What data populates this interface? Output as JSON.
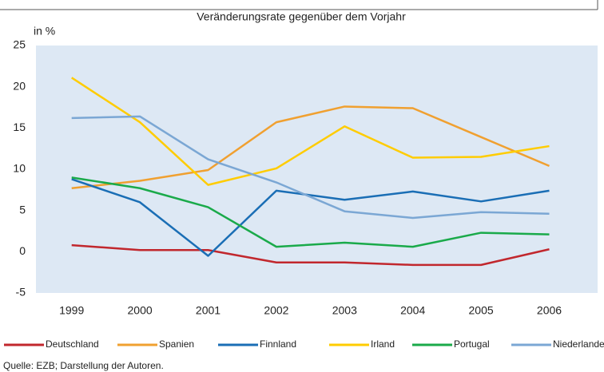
{
  "chart_data": {
    "type": "line",
    "title": "Veränderungsrate gegenüber dem Vorjahr",
    "y_label": "in %",
    "source": "Quelle: EZB; Darstellung der Autoren.",
    "categories": [
      "1999",
      "2000",
      "2001",
      "2002",
      "2003",
      "2004",
      "2005",
      "2006"
    ],
    "series": [
      {
        "name": "Deutschland",
        "color": "#c1272d",
        "values": [
          0.8,
          0.2,
          0.2,
          -1.3,
          -1.3,
          -1.6,
          -1.6,
          0.3
        ]
      },
      {
        "name": "Spanien",
        "color": "#f0a030",
        "values": [
          7.7,
          8.6,
          9.9,
          15.7,
          17.6,
          17.4,
          13.9,
          10.4
        ]
      },
      {
        "name": "Finnland",
        "color": "#1a6eb5",
        "values": [
          8.8,
          6.0,
          -0.5,
          7.4,
          6.3,
          7.3,
          6.1,
          7.4
        ]
      },
      {
        "name": "Irland",
        "color": "#ffcc00",
        "values": [
          21.1,
          15.7,
          8.1,
          10.1,
          15.2,
          11.4,
          11.5,
          12.8
        ]
      },
      {
        "name": "Portugal",
        "color": "#1aaa4a",
        "values": [
          9.0,
          7.7,
          5.4,
          0.6,
          1.1,
          0.6,
          2.3,
          2.1
        ]
      },
      {
        "name": "Niederlande",
        "color": "#7ba7d4",
        "values": [
          16.2,
          16.4,
          11.2,
          8.4,
          4.9,
          4.1,
          4.8,
          4.6
        ]
      }
    ],
    "ylim": [
      -5,
      25
    ],
    "yticks": [
      -5,
      0,
      5,
      10,
      15,
      20,
      25
    ],
    "grid": false
  }
}
